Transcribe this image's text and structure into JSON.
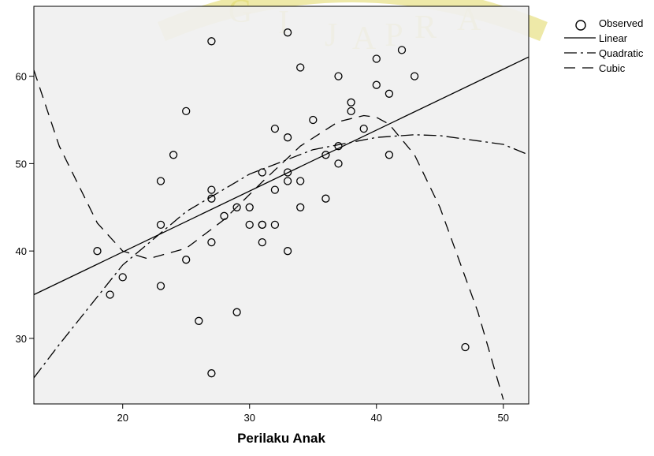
{
  "chart_data": {
    "type": "scatter",
    "title": "",
    "xlabel": "Perilaku Anak",
    "ylabel": "",
    "xlim": [
      13,
      52
    ],
    "ylim": [
      22.5,
      68
    ],
    "x_ticks": [
      20,
      30,
      40,
      50
    ],
    "y_ticks": [
      30,
      40,
      50,
      60
    ],
    "grid": false,
    "legend_position": "right",
    "legend": [
      "Observed",
      "Linear",
      "Quadratic",
      "Cubic"
    ],
    "series": [
      {
        "name": "Observed",
        "kind": "points",
        "points": [
          [
            18,
            40
          ],
          [
            19,
            35
          ],
          [
            20,
            37
          ],
          [
            23,
            48
          ],
          [
            23,
            43
          ],
          [
            23,
            36
          ],
          [
            24,
            51
          ],
          [
            25,
            56
          ],
          [
            25,
            39
          ],
          [
            26,
            32
          ],
          [
            27,
            64
          ],
          [
            27,
            47
          ],
          [
            27,
            46
          ],
          [
            27,
            41
          ],
          [
            27,
            26
          ],
          [
            28,
            44
          ],
          [
            29,
            45
          ],
          [
            29,
            33
          ],
          [
            30,
            45
          ],
          [
            30,
            43
          ],
          [
            31,
            49
          ],
          [
            31,
            43
          ],
          [
            31,
            43
          ],
          [
            31,
            41
          ],
          [
            32,
            54
          ],
          [
            32,
            47
          ],
          [
            32,
            43
          ],
          [
            33,
            65
          ],
          [
            33,
            53
          ],
          [
            33,
            49
          ],
          [
            33,
            48
          ],
          [
            33,
            40
          ],
          [
            34,
            61
          ],
          [
            34,
            48
          ],
          [
            34,
            45
          ],
          [
            35,
            55
          ],
          [
            36,
            51
          ],
          [
            36,
            46
          ],
          [
            37,
            60
          ],
          [
            37,
            52
          ],
          [
            37,
            50
          ],
          [
            38,
            57
          ],
          [
            38,
            56
          ],
          [
            39,
            54
          ],
          [
            40,
            62
          ],
          [
            40,
            59
          ],
          [
            41,
            58
          ],
          [
            41,
            51
          ],
          [
            42,
            63
          ],
          [
            43,
            60
          ],
          [
            47,
            29
          ]
        ]
      },
      {
        "name": "Linear",
        "kind": "line",
        "x": [
          13,
          52
        ],
        "y": [
          35,
          62.2
        ]
      },
      {
        "name": "Quadratic",
        "kind": "line",
        "x": [
          13,
          15,
          20,
          25,
          30,
          35,
          40,
          43,
          45,
          50,
          52
        ],
        "y": [
          25.5,
          29.3,
          38.4,
          44.5,
          48.8,
          51.6,
          53.0,
          53.3,
          53.2,
          52.2,
          51.0
        ]
      },
      {
        "name": "Cubic",
        "kind": "line",
        "x": [
          13,
          15,
          18,
          20,
          22,
          25,
          28,
          31,
          34,
          37,
          39,
          40,
          41,
          43,
          45,
          48,
          50
        ],
        "y": [
          60.7,
          52.0,
          43.2,
          40.0,
          39.1,
          40.3,
          43.6,
          47.9,
          52.0,
          54.8,
          55.5,
          55.3,
          54.5,
          51.0,
          45.0,
          33.0,
          23.0
        ]
      }
    ]
  },
  "watermark": {
    "letters": [
      "G",
      "I",
      "J",
      "A",
      "P",
      "R",
      "A"
    ],
    "color": "#e6e085"
  }
}
